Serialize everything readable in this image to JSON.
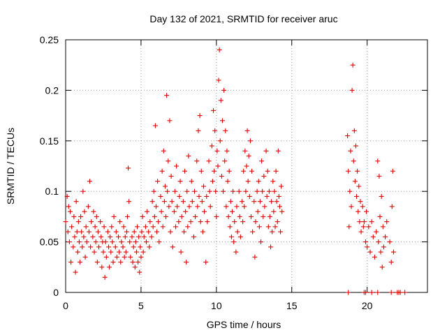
{
  "chart_data": {
    "type": "scatter",
    "title": "Day 132 of 2021, SRMTID for receiver aruc",
    "xlabel": "GPS time / hours",
    "ylabel": "SRMTID / TECUs",
    "xlim": [
      0,
      24
    ],
    "ylim": [
      0,
      0.25
    ],
    "xticks": [
      0,
      5,
      10,
      15,
      20
    ],
    "yticks": [
      0,
      0.05,
      0.1,
      0.15,
      0.2,
      0.25
    ],
    "ytick_labels": [
      "0",
      "0.05",
      "0.1",
      "0.15",
      "0.2",
      "0.25"
    ],
    "xtick_labels": [
      "0",
      "5",
      "10",
      "15",
      "20"
    ],
    "grid": true,
    "marker": "+",
    "color": "#e00000",
    "series": [
      {
        "name": "SRMTID",
        "points": [
          [
            0.0,
            0.07
          ],
          [
            0.1,
            0.095
          ],
          [
            0.15,
            0.06
          ],
          [
            0.2,
            0.085
          ],
          [
            0.25,
            0.05
          ],
          [
            0.3,
            0.08
          ],
          [
            0.35,
            0.03
          ],
          [
            0.4,
            0.065
          ],
          [
            0.5,
            0.045
          ],
          [
            0.55,
            0.075
          ],
          [
            0.6,
            0.055
          ],
          [
            0.65,
            0.02
          ],
          [
            0.7,
            0.09
          ],
          [
            0.75,
            0.06
          ],
          [
            0.8,
            0.04
          ],
          [
            0.85,
            0.07
          ],
          [
            0.9,
            0.05
          ],
          [
            0.95,
            0.03
          ],
          [
            1.0,
            0.075
          ],
          [
            1.05,
            0.06
          ],
          [
            1.1,
            0.045
          ],
          [
            1.15,
            0.1
          ],
          [
            1.2,
            0.055
          ],
          [
            1.25,
            0.08
          ],
          [
            1.3,
            0.035
          ],
          [
            1.35,
            0.065
          ],
          [
            1.4,
            0.05
          ],
          [
            1.5,
            0.085
          ],
          [
            1.55,
            0.06
          ],
          [
            1.6,
            0.11
          ],
          [
            1.65,
            0.045
          ],
          [
            1.7,
            0.07
          ],
          [
            1.8,
            0.055
          ],
          [
            1.85,
            0.08
          ],
          [
            1.9,
            0.04
          ],
          [
            1.95,
            0.065
          ],
          [
            2.0,
            0.05
          ],
          [
            2.05,
            0.075
          ],
          [
            2.1,
            0.03
          ],
          [
            2.15,
            0.06
          ],
          [
            2.2,
            0.045
          ],
          [
            2.3,
            0.07
          ],
          [
            2.35,
            0.055
          ],
          [
            2.4,
            0.025
          ],
          [
            2.45,
            0.05
          ],
          [
            2.5,
            0.04
          ],
          [
            2.55,
            0.065
          ],
          [
            2.6,
            0.015
          ],
          [
            2.65,
            0.05
          ],
          [
            2.7,
            0.035
          ],
          [
            2.8,
            0.06
          ],
          [
            2.85,
            0.045
          ],
          [
            2.9,
            0.025
          ],
          [
            2.95,
            0.055
          ],
          [
            3.0,
            0.04
          ],
          [
            3.05,
            0.065
          ],
          [
            3.1,
            0.05
          ],
          [
            3.15,
            0.03
          ],
          [
            3.2,
            0.075
          ],
          [
            3.3,
            0.045
          ],
          [
            3.35,
            0.06
          ],
          [
            3.4,
            0.035
          ],
          [
            3.5,
            0.055
          ],
          [
            3.55,
            0.04
          ],
          [
            3.6,
            0.07
          ],
          [
            3.65,
            0.03
          ],
          [
            3.7,
            0.05
          ],
          [
            3.8,
            0.045
          ],
          [
            3.85,
            0.065
          ],
          [
            3.9,
            0.035
          ],
          [
            3.95,
            0.055
          ],
          [
            4.0,
            0.04
          ],
          [
            4.05,
            0.06
          ],
          [
            4.1,
            0.075
          ],
          [
            4.15,
            0.123
          ],
          [
            4.2,
            0.09
          ],
          [
            4.25,
            0.05
          ],
          [
            4.3,
            0.035
          ],
          [
            4.4,
            0.055
          ],
          [
            4.45,
            0.03
          ],
          [
            4.5,
            0.045
          ],
          [
            4.55,
            0.06
          ],
          [
            4.6,
            0.025
          ],
          [
            4.65,
            0.05
          ],
          [
            4.7,
            0.04
          ],
          [
            4.75,
            0.065
          ],
          [
            4.8,
            0.03
          ],
          [
            4.85,
            0.055
          ],
          [
            4.9,
            0.02
          ],
          [
            4.95,
            0.045
          ],
          [
            5.0,
            0.035
          ],
          [
            5.05,
            0.06
          ],
          [
            5.1,
            0.075
          ],
          [
            5.15,
            0.04
          ],
          [
            5.2,
            0.055
          ],
          [
            5.3,
            0.065
          ],
          [
            5.35,
            0.05
          ],
          [
            5.4,
            0.08
          ],
          [
            5.5,
            0.06
          ],
          [
            5.55,
            0.045
          ],
          [
            5.6,
            0.07
          ],
          [
            5.7,
            0.055
          ],
          [
            5.75,
            0.09
          ],
          [
            5.8,
            0.065
          ],
          [
            5.85,
            0.1
          ],
          [
            5.9,
            0.075
          ],
          [
            5.95,
            0.165
          ],
          [
            6.0,
            0.085
          ],
          [
            6.05,
            0.06
          ],
          [
            6.1,
            0.11
          ],
          [
            6.15,
            0.07
          ],
          [
            6.2,
            0.05
          ],
          [
            6.3,
            0.095
          ],
          [
            6.35,
            0.08
          ],
          [
            6.4,
            0.12
          ],
          [
            6.45,
            0.065
          ],
          [
            6.5,
            0.14
          ],
          [
            6.55,
            0.09
          ],
          [
            6.6,
            0.105
          ],
          [
            6.65,
            0.075
          ],
          [
            6.7,
            0.195
          ],
          [
            6.75,
            0.1
          ],
          [
            6.8,
            0.13
          ],
          [
            6.85,
            0.085
          ],
          [
            6.9,
            0.17
          ],
          [
            6.95,
            0.06
          ],
          [
            7.0,
            0.115
          ],
          [
            7.05,
            0.09
          ],
          [
            7.1,
            0.045
          ],
          [
            7.2,
            0.08
          ],
          [
            7.25,
            0.1
          ],
          [
            7.3,
            0.065
          ],
          [
            7.35,
            0.125
          ],
          [
            7.4,
            0.085
          ],
          [
            7.5,
            0.07
          ],
          [
            7.55,
            0.095
          ],
          [
            7.6,
            0.11
          ],
          [
            7.65,
            0.04
          ],
          [
            7.7,
            0.075
          ],
          [
            7.8,
            0.09
          ],
          [
            7.85,
            0.06
          ],
          [
            7.9,
            0.12
          ],
          [
            7.95,
            0.08
          ],
          [
            8.0,
            0.03
          ],
          [
            8.05,
            0.1
          ],
          [
            8.1,
            0.065
          ],
          [
            8.15,
            0.135
          ],
          [
            8.2,
            0.085
          ],
          [
            8.3,
            0.07
          ],
          [
            8.35,
            0.11
          ],
          [
            8.4,
            0.09
          ],
          [
            8.5,
            0.055
          ],
          [
            8.55,
            0.1
          ],
          [
            8.6,
            0.075
          ],
          [
            8.7,
            0.13
          ],
          [
            8.75,
            0.085
          ],
          [
            8.8,
            0.16
          ],
          [
            8.85,
            0.095
          ],
          [
            8.9,
            0.175
          ],
          [
            8.95,
            0.07
          ],
          [
            9.0,
            0.12
          ],
          [
            9.05,
            0.09
          ],
          [
            9.1,
            0.06
          ],
          [
            9.15,
            0.105
          ],
          [
            9.2,
            0.08
          ],
          [
            9.3,
            0.03
          ],
          [
            9.35,
            0.095
          ],
          [
            9.4,
            0.07
          ],
          [
            9.5,
            0.13
          ],
          [
            9.55,
            0.1
          ],
          [
            9.6,
            0.085
          ],
          [
            9.7,
            0.145
          ],
          [
            9.75,
            0.11
          ],
          [
            9.8,
            0.18
          ],
          [
            9.85,
            0.12
          ],
          [
            9.9,
            0.16
          ],
          [
            9.95,
            0.1
          ],
          [
            10.0,
            0.075
          ],
          [
            10.05,
            0.14
          ],
          [
            10.1,
            0.125
          ],
          [
            10.15,
            0.21
          ],
          [
            10.2,
            0.24
          ],
          [
            10.25,
            0.15
          ],
          [
            10.3,
            0.19
          ],
          [
            10.35,
            0.115
          ],
          [
            10.4,
            0.17
          ],
          [
            10.45,
            0.1
          ],
          [
            10.5,
            0.2
          ],
          [
            10.55,
            0.13
          ],
          [
            10.6,
            0.16
          ],
          [
            10.65,
            0.085
          ],
          [
            10.7,
            0.14
          ],
          [
            10.75,
            0.11
          ],
          [
            10.8,
            0.075
          ],
          [
            10.85,
            0.12
          ],
          [
            10.9,
            0.065
          ],
          [
            10.95,
            0.09
          ],
          [
            11.0,
            0.055
          ],
          [
            11.05,
            0.08
          ],
          [
            11.1,
            0.1
          ],
          [
            11.15,
            0.05
          ],
          [
            11.2,
            0.07
          ],
          [
            11.3,
            0.04
          ],
          [
            11.35,
            0.085
          ],
          [
            11.4,
            0.06
          ],
          [
            11.5,
            0.1
          ],
          [
            11.55,
            0.075
          ],
          [
            11.6,
            0.055
          ],
          [
            11.7,
            0.09
          ],
          [
            11.75,
            0.07
          ],
          [
            11.8,
            0.12
          ],
          [
            11.85,
            0.085
          ],
          [
            11.9,
            0.14
          ],
          [
            11.95,
            0.1
          ],
          [
            12.0,
            0.125
          ],
          [
            12.05,
            0.16
          ],
          [
            12.1,
            0.11
          ],
          [
            12.15,
            0.135
          ],
          [
            12.2,
            0.095
          ],
          [
            12.25,
            0.15
          ],
          [
            12.3,
            0.075
          ],
          [
            12.35,
            0.12
          ],
          [
            12.4,
            0.06
          ],
          [
            12.5,
            0.09
          ],
          [
            12.55,
            0.035
          ],
          [
            12.6,
            0.07
          ],
          [
            12.7,
            0.1
          ],
          [
            12.75,
            0.08
          ],
          [
            12.8,
            0.11
          ],
          [
            12.85,
            0.065
          ],
          [
            12.9,
            0.09
          ],
          [
            12.95,
            0.05
          ],
          [
            13.0,
            0.13
          ],
          [
            13.05,
            0.1
          ],
          [
            13.1,
            0.075
          ],
          [
            13.15,
            0.115
          ],
          [
            13.2,
            0.085
          ],
          [
            13.3,
            0.14
          ],
          [
            13.35,
            0.095
          ],
          [
            13.4,
            0.12
          ],
          [
            13.45,
            0.065
          ],
          [
            13.5,
            0.1
          ],
          [
            13.55,
            0.075
          ],
          [
            13.6,
            0.045
          ],
          [
            13.65,
            0.09
          ],
          [
            13.7,
            0.06
          ],
          [
            13.75,
            0.11
          ],
          [
            13.8,
            0.08
          ],
          [
            13.85,
            0.1
          ],
          [
            13.9,
            0.065
          ],
          [
            13.95,
            0.12
          ],
          [
            14.0,
            0.09
          ],
          [
            14.05,
            0.07
          ],
          [
            14.1,
            0.14
          ],
          [
            14.15,
            0.095
          ],
          [
            14.2,
            0.085
          ],
          [
            14.25,
            0.06
          ],
          [
            14.3,
            0.105
          ],
          [
            14.35,
            0.08
          ],
          [
            18.7,
            0.155
          ],
          [
            18.75,
            0.12
          ],
          [
            18.8,
            0.065
          ],
          [
            18.85,
            0.1
          ],
          [
            18.9,
            0.14
          ],
          [
            18.95,
            0.085
          ],
          [
            19.0,
            0.2
          ],
          [
            19.05,
            0.225
          ],
          [
            19.1,
            0.13
          ],
          [
            19.15,
            0.16
          ],
          [
            19.2,
            0.11
          ],
          [
            19.25,
            0.145
          ],
          [
            19.3,
            0.095
          ],
          [
            19.35,
            0.12
          ],
          [
            19.4,
            0.08
          ],
          [
            19.45,
            0.105
          ],
          [
            19.5,
            0.07
          ],
          [
            19.55,
            0.09
          ],
          [
            19.6,
            0.06
          ],
          [
            19.7,
            0.085
          ],
          [
            19.75,
            0.065
          ],
          [
            19.8,
            0.07
          ],
          [
            19.9,
            0.05
          ],
          [
            19.95,
            0.08
          ],
          [
            20.0,
            0.045
          ],
          [
            20.1,
            0.065
          ],
          [
            20.2,
            0.04
          ],
          [
            20.3,
            0.07
          ],
          [
            20.4,
            0.055
          ],
          [
            20.5,
            0.035
          ],
          [
            20.6,
            0.06
          ],
          [
            20.7,
            0.13
          ],
          [
            20.75,
            0.05
          ],
          [
            20.8,
            0.115
          ],
          [
            20.85,
            0.075
          ],
          [
            20.9,
            0.04
          ],
          [
            20.95,
            0.095
          ],
          [
            21.0,
            0.025
          ],
          [
            21.05,
            0.065
          ],
          [
            21.1,
            0.045
          ],
          [
            21.2,
            0.055
          ],
          [
            21.3,
            0.07
          ],
          [
            21.5,
            0.05
          ],
          [
            21.6,
            0.03
          ],
          [
            21.65,
            0.085
          ],
          [
            21.7,
            0.12
          ],
          [
            21.75,
            0.04
          ],
          [
            18.75,
            0
          ],
          [
            19.8,
            0
          ],
          [
            19.9,
            0
          ],
          [
            20.3,
            0
          ],
          [
            20.7,
            0
          ],
          [
            21.6,
            0
          ],
          [
            22.0,
            0
          ],
          [
            22.1,
            0
          ],
          [
            22.2,
            0
          ],
          [
            22.5,
            0
          ]
        ]
      }
    ]
  }
}
